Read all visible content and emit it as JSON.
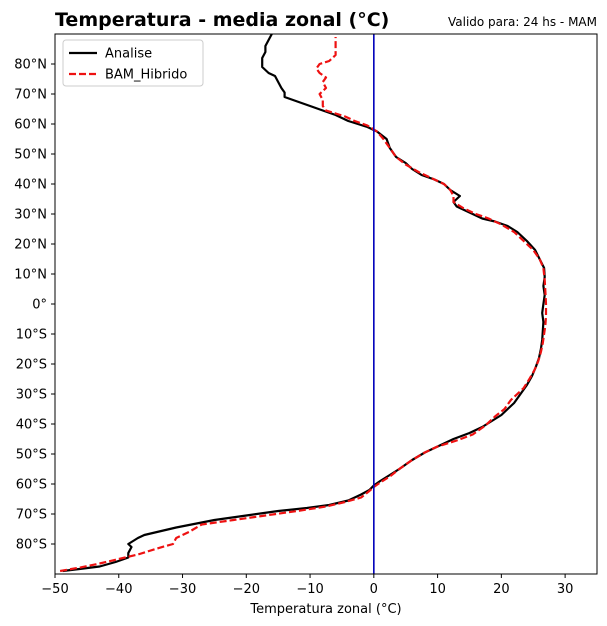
{
  "chart_data": {
    "type": "line",
    "title": "Temperatura - media zonal (°C)",
    "subtitle": "Valido para: 24 hs - MAM",
    "xlabel": "Temperatura zonal (°C)",
    "ylabel": "",
    "xlim": [
      -50,
      35
    ],
    "ylim": [
      -90,
      90
    ],
    "x_ticks": [
      -50,
      -40,
      -30,
      -20,
      -10,
      0,
      10,
      20,
      30
    ],
    "x_tick_labels": [
      "−50",
      "−40",
      "−30",
      "−20",
      "−10",
      "0",
      "10",
      "20",
      "30"
    ],
    "y_ticks": [
      80,
      70,
      60,
      50,
      40,
      30,
      20,
      10,
      0,
      -10,
      -20,
      -30,
      -40,
      -50,
      -60,
      -70,
      -80
    ],
    "y_tick_labels": [
      "80°N",
      "70°N",
      "60°N",
      "50°N",
      "40°N",
      "30°N",
      "20°N",
      "10°N",
      "0°",
      "10°S",
      "20°S",
      "30°S",
      "40°S",
      "50°S",
      "60°S",
      "70°S",
      "80°S"
    ],
    "grid": false,
    "legend_position": "top-left",
    "reference_line": {
      "x": 0,
      "color": "#0000bb"
    },
    "series": [
      {
        "name": "Analise",
        "color": "#000000",
        "style": "solid",
        "points": [
          [
            -48.8,
            -89
          ],
          [
            -46,
            -88.3
          ],
          [
            -43,
            -87.5
          ],
          [
            -40.5,
            -86
          ],
          [
            -38.5,
            -84.5
          ],
          [
            -38.5,
            -83
          ],
          [
            -38,
            -81
          ],
          [
            -38.5,
            -80
          ],
          [
            -37,
            -78
          ],
          [
            -36,
            -77
          ],
          [
            -34,
            -76
          ],
          [
            -31,
            -74.5
          ],
          [
            -25,
            -72
          ],
          [
            -20,
            -70.5
          ],
          [
            -15,
            -69
          ],
          [
            -10.5,
            -68
          ],
          [
            -7,
            -67
          ],
          [
            -4,
            -65.5
          ],
          [
            -2,
            -63.5
          ],
          [
            -0.7,
            -62
          ],
          [
            0,
            -60.5
          ],
          [
            1,
            -59
          ],
          [
            2.5,
            -57
          ],
          [
            4,
            -55
          ],
          [
            6,
            -52
          ],
          [
            8,
            -49.5
          ],
          [
            10,
            -47.5
          ],
          [
            12.5,
            -45
          ],
          [
            15,
            -43
          ],
          [
            17,
            -41
          ],
          [
            18.5,
            -39
          ],
          [
            20,
            -37
          ],
          [
            21,
            -35
          ],
          [
            22,
            -33
          ],
          [
            23,
            -30
          ],
          [
            24,
            -27
          ],
          [
            24.8,
            -24
          ],
          [
            25.4,
            -21
          ],
          [
            25.9,
            -18
          ],
          [
            26.2,
            -15
          ],
          [
            26.4,
            -12
          ],
          [
            26.5,
            -9
          ],
          [
            26.6,
            -6
          ],
          [
            26.4,
            -3
          ],
          [
            26.6,
            0
          ],
          [
            26.8,
            3
          ],
          [
            26.6,
            6
          ],
          [
            26.8,
            9
          ],
          [
            26.7,
            12
          ],
          [
            26,
            15
          ],
          [
            25.3,
            18
          ],
          [
            24,
            21
          ],
          [
            22.5,
            24
          ],
          [
            21,
            26
          ],
          [
            19,
            27.5
          ],
          [
            17,
            28.5
          ],
          [
            15,
            30.5
          ],
          [
            13,
            32.5
          ],
          [
            12.5,
            34
          ],
          [
            13.5,
            36
          ],
          [
            12,
            38
          ],
          [
            11,
            40
          ],
          [
            9.5,
            41.5
          ],
          [
            7.5,
            43
          ],
          [
            6,
            45
          ],
          [
            5,
            47
          ],
          [
            3.5,
            49
          ],
          [
            2.5,
            52
          ],
          [
            2,
            55
          ],
          [
            0.5,
            57.5
          ],
          [
            -1,
            59
          ],
          [
            -2.5,
            60
          ],
          [
            -4,
            61
          ],
          [
            -6,
            63
          ],
          [
            -8,
            64.5
          ],
          [
            -10,
            66
          ],
          [
            -12,
            67.5
          ],
          [
            -14,
            69
          ],
          [
            -14,
            70.5
          ],
          [
            -14.5,
            72
          ],
          [
            -15,
            74
          ],
          [
            -15.5,
            76
          ],
          [
            -16.5,
            77
          ],
          [
            -17.5,
            79
          ],
          [
            -17.5,
            80.5
          ],
          [
            -17.5,
            82
          ],
          [
            -17,
            84
          ],
          [
            -17,
            86
          ],
          [
            -16.5,
            88
          ],
          [
            -16,
            90
          ]
        ]
      },
      {
        "name": "BAM_Hibrido",
        "color": "#ee1111",
        "style": "dashed",
        "points": [
          [
            -49.2,
            -89
          ],
          [
            -46,
            -87.8
          ],
          [
            -43,
            -86.5
          ],
          [
            -40,
            -85
          ],
          [
            -37,
            -83.5
          ],
          [
            -34,
            -81.5
          ],
          [
            -31.5,
            -80
          ],
          [
            -31,
            -78
          ],
          [
            -29,
            -76
          ],
          [
            -27,
            -73.5
          ],
          [
            -22,
            -72
          ],
          [
            -17,
            -70.5
          ],
          [
            -12,
            -69
          ],
          [
            -7.5,
            -67.5
          ],
          [
            -4.5,
            -66
          ],
          [
            -2,
            -64.5
          ],
          [
            -0.8,
            -62.5
          ],
          [
            0,
            -61
          ],
          [
            1,
            -59.5
          ],
          [
            2.5,
            -57.5
          ],
          [
            4,
            -55
          ],
          [
            6,
            -52
          ],
          [
            8,
            -49.5
          ],
          [
            10,
            -47.5
          ],
          [
            13,
            -45.5
          ],
          [
            15.5,
            -43.5
          ],
          [
            17.5,
            -40.5
          ],
          [
            19,
            -37.5
          ],
          [
            20.5,
            -35
          ],
          [
            21.5,
            -32
          ],
          [
            22.5,
            -30
          ],
          [
            23.5,
            -28
          ],
          [
            24.4,
            -25
          ],
          [
            25.2,
            -22
          ],
          [
            25.8,
            -19
          ],
          [
            26.2,
            -16
          ],
          [
            26.5,
            -13
          ],
          [
            26.7,
            -10
          ],
          [
            26.9,
            -7
          ],
          [
            27,
            -4
          ],
          [
            27,
            0
          ],
          [
            26.9,
            4
          ],
          [
            26.8,
            8
          ],
          [
            26.6,
            12
          ],
          [
            26,
            15
          ],
          [
            25,
            18
          ],
          [
            23.5,
            21
          ],
          [
            22,
            24
          ],
          [
            20,
            26.5
          ],
          [
            18,
            28.5
          ],
          [
            16,
            30
          ],
          [
            14,
            32
          ],
          [
            12.5,
            34
          ],
          [
            12.5,
            36
          ],
          [
            12,
            38
          ],
          [
            11,
            40
          ],
          [
            9,
            42
          ],
          [
            7,
            44
          ],
          [
            5,
            46.5
          ],
          [
            3.5,
            49
          ],
          [
            2.5,
            52
          ],
          [
            1.5,
            55
          ],
          [
            0.5,
            57.5
          ],
          [
            -1,
            59.5
          ],
          [
            -3,
            61
          ],
          [
            -4.5,
            62.5
          ],
          [
            -6,
            63.5
          ],
          [
            -7.5,
            64.5
          ],
          [
            -8,
            66
          ],
          [
            -8,
            68
          ],
          [
            -8.5,
            70
          ],
          [
            -7.5,
            72
          ],
          [
            -8,
            74
          ],
          [
            -7.5,
            75.5
          ],
          [
            -8.5,
            77
          ],
          [
            -9,
            78.5
          ],
          [
            -8.5,
            80
          ],
          [
            -7,
            81
          ],
          [
            -6.5,
            82
          ],
          [
            -6,
            83
          ],
          [
            -6,
            85
          ],
          [
            -6,
            87
          ],
          [
            -6,
            89
          ]
        ]
      }
    ]
  }
}
